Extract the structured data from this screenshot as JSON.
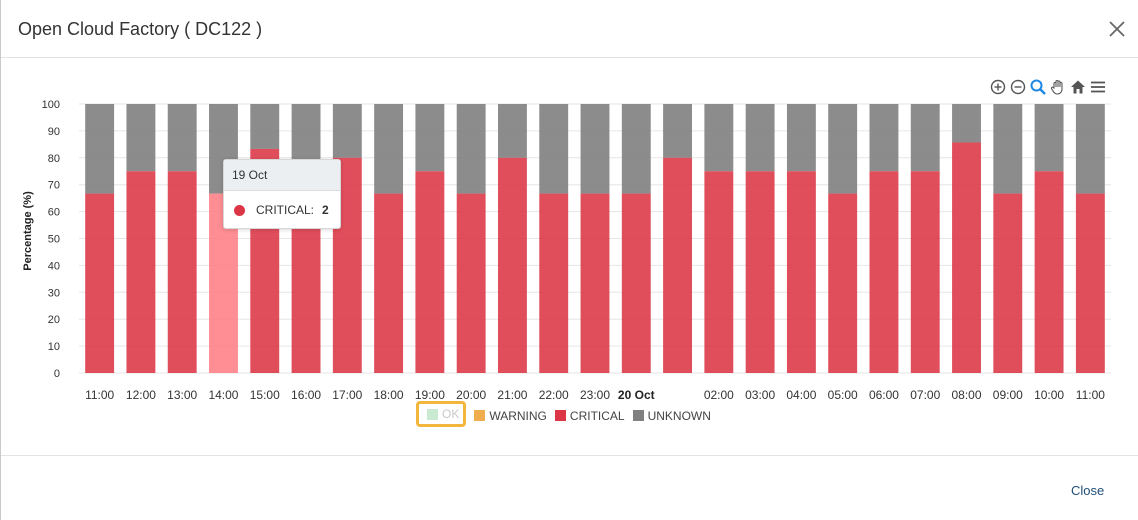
{
  "window": {
    "title": "Open Cloud Factory ( DC122 )",
    "close_label": "Close"
  },
  "toolbar": {
    "icons": [
      "zoom-in-icon",
      "zoom-out-icon",
      "selection-zoom-icon",
      "pan-icon",
      "reset-home-icon",
      "menu-icon"
    ]
  },
  "tooltip": {
    "header": "19 Oct",
    "series": "CRITICAL:",
    "value": "2"
  },
  "colors": {
    "ok": "#c9ead0",
    "warning": "#f0ad4e",
    "critical": "#dc3545",
    "critical_hover": "#fe7d85",
    "unknown": "#808080"
  },
  "chart_data": {
    "type": "bar",
    "stacked": true,
    "ylabel": "Percentage (%)",
    "xlabel": "",
    "ylim": [
      0,
      100
    ],
    "yticks": [
      0,
      10,
      20,
      30,
      40,
      50,
      60,
      70,
      80,
      90,
      100
    ],
    "categories": [
      "11:00",
      "12:00",
      "13:00",
      "14:00",
      "15:00",
      "16:00",
      "17:00",
      "18:00",
      "19:00",
      "20:00",
      "21:00",
      "22:00",
      "23:00",
      "20 Oct",
      "",
      "02:00",
      "03:00",
      "04:00",
      "05:00",
      "06:00",
      "07:00",
      "08:00",
      "09:00",
      "10:00",
      "11:00"
    ],
    "bold_categories": [
      "20 Oct"
    ],
    "hovered_index": 3,
    "series": [
      {
        "name": "OK",
        "values": [
          0,
          0,
          0,
          0,
          0,
          0,
          0,
          0,
          0,
          0,
          0,
          0,
          0,
          0,
          0,
          0,
          0,
          0,
          0,
          0,
          0,
          0,
          0,
          0,
          0
        ]
      },
      {
        "name": "WARNING",
        "values": [
          0,
          0,
          0,
          0,
          0,
          0,
          0,
          0,
          0,
          0,
          0,
          0,
          0,
          0,
          0,
          0,
          0,
          0,
          0,
          0,
          0,
          0,
          0,
          0,
          0
        ]
      },
      {
        "name": "CRITICAL",
        "values": [
          66.7,
          75,
          75,
          66.7,
          83.3,
          66.7,
          80,
          66.7,
          75,
          66.7,
          80,
          66.7,
          66.7,
          66.7,
          80,
          75,
          75,
          75,
          66.7,
          75,
          75,
          85.7,
          66.7,
          75,
          66.7
        ]
      },
      {
        "name": "UNKNOWN",
        "values": [
          33.3,
          25,
          25,
          33.3,
          16.7,
          33.3,
          20,
          33.3,
          25,
          33.3,
          20,
          33.3,
          33.3,
          33.3,
          20,
          25,
          25,
          25,
          33.3,
          25,
          25,
          14.3,
          33.3,
          25,
          33.3
        ]
      }
    ],
    "legend": {
      "position": "bottom-center",
      "items": [
        "OK",
        "WARNING",
        "CRITICAL",
        "UNKNOWN"
      ],
      "disabled": [
        "OK"
      ]
    },
    "grid": true
  }
}
